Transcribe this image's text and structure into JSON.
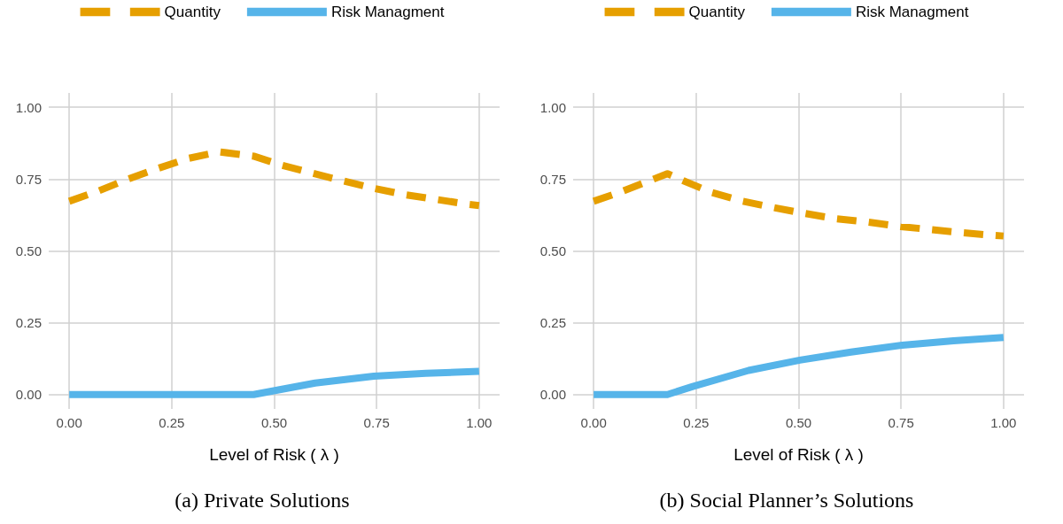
{
  "chart_data": [
    {
      "type": "line",
      "title": "(a) Private Solutions",
      "xlabel": "Level of Risk ( λ )",
      "legend": "top",
      "grid": true,
      "marker": "none",
      "xlim": [
        -0.05,
        1.05
      ],
      "xticks": [
        {
          "value": 0,
          "label": "0.00"
        },
        {
          "value": 0.25,
          "label": "0.25"
        },
        {
          "value": 0.5,
          "label": "0.50"
        },
        {
          "value": 0.75,
          "label": "0.75"
        },
        {
          "value": 1,
          "label": "1.00"
        }
      ],
      "ylim": [
        -0.05,
        1.05
      ],
      "yticks": [
        {
          "value": 0,
          "label": "0.00"
        },
        {
          "value": 0.25,
          "label": "0.25"
        },
        {
          "value": 0.5,
          "label": "0.50"
        },
        {
          "value": 0.75,
          "label": "0.75"
        },
        {
          "value": 1,
          "label": "1.00"
        }
      ],
      "series": [
        {
          "name": "Quantity",
          "color": "#e69f00",
          "line_style": "dashed",
          "x": [
            0,
            0.07,
            0.145,
            0.216,
            0.29,
            0.365,
            0.45,
            0.515,
            0.59,
            0.665,
            0.743,
            0.818,
            0.893,
            0.97,
            1.0
          ],
          "values": [
            0.673,
            0.708,
            0.751,
            0.787,
            0.822,
            0.845,
            0.83,
            0.8,
            0.772,
            0.745,
            0.718,
            0.696,
            0.68,
            0.663,
            0.658
          ]
        },
        {
          "name": "Risk Managment",
          "color": "#56b4e9",
          "line_style": "solid",
          "x": [
            0,
            0.45,
            0.6,
            0.743,
            0.87,
            1.0
          ],
          "values": [
            0,
            0,
            0.04,
            0.064,
            0.074,
            0.081
          ]
        }
      ]
    },
    {
      "type": "line",
      "title": "(b) Social Planner’s Solutions",
      "xlabel": "Level of Risk ( λ )",
      "legend": "top",
      "grid": true,
      "marker": "none",
      "xlim": [
        -0.05,
        1.05
      ],
      "xticks": [
        {
          "value": 0,
          "label": "0.00"
        },
        {
          "value": 0.25,
          "label": "0.25"
        },
        {
          "value": 0.5,
          "label": "0.50"
        },
        {
          "value": 0.75,
          "label": "0.75"
        },
        {
          "value": 1,
          "label": "1.00"
        }
      ],
      "ylim": [
        -0.05,
        1.05
      ],
      "yticks": [
        {
          "value": 0,
          "label": "0.00"
        },
        {
          "value": 0.25,
          "label": "0.25"
        },
        {
          "value": 0.5,
          "label": "0.50"
        },
        {
          "value": 0.75,
          "label": "0.75"
        },
        {
          "value": 1,
          "label": "1.00"
        }
      ],
      "series": [
        {
          "name": "Quantity",
          "color": "#e69f00",
          "line_style": "dashed",
          "x": [
            0,
            0.071,
            0.146,
            0.18,
            0.218,
            0.289,
            0.364,
            0.443,
            0.517,
            0.592,
            0.671,
            0.749,
            0.824,
            0.903,
            0.978,
            1.0
          ],
          "values": [
            0.673,
            0.708,
            0.75,
            0.769,
            0.745,
            0.703,
            0.673,
            0.65,
            0.63,
            0.612,
            0.6,
            0.585,
            0.574,
            0.563,
            0.554,
            0.552
          ]
        },
        {
          "name": "Risk Managment",
          "color": "#56b4e9",
          "line_style": "solid",
          "x": [
            0,
            0.18,
            0.242,
            0.378,
            0.503,
            0.628,
            0.753,
            0.878,
            1.0
          ],
          "values": [
            0,
            0,
            0.028,
            0.084,
            0.12,
            0.148,
            0.172,
            0.187,
            0.199
          ]
        }
      ]
    }
  ]
}
